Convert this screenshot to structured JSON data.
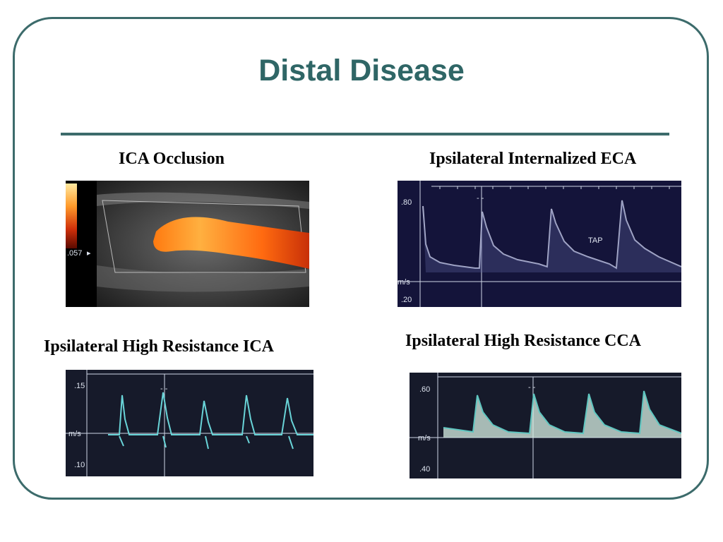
{
  "slide": {
    "title": "Distal Disease"
  },
  "panels": {
    "ica_occlusion": {
      "caption": "ICA Occlusion",
      "scale_label": ".057"
    },
    "internalized_eca": {
      "caption": "Ipsilateral Internalized ECA",
      "top_label": ".80",
      "unit_label": "m/s",
      "bottom_label": ".20",
      "annotation": "TAP"
    },
    "high_res_ica": {
      "caption": "Ipsilateral High Resistance ICA",
      "top_label": ".15",
      "unit_label": "m/s",
      "bottom_label": ".10"
    },
    "high_res_cca": {
      "caption": "Ipsilateral High Resistance CCA",
      "top_label": ".60",
      "unit_label": "m/s",
      "bottom_label": ".40"
    }
  },
  "colors": {
    "accent": "#2f6666",
    "border": "#3c6b6b"
  }
}
